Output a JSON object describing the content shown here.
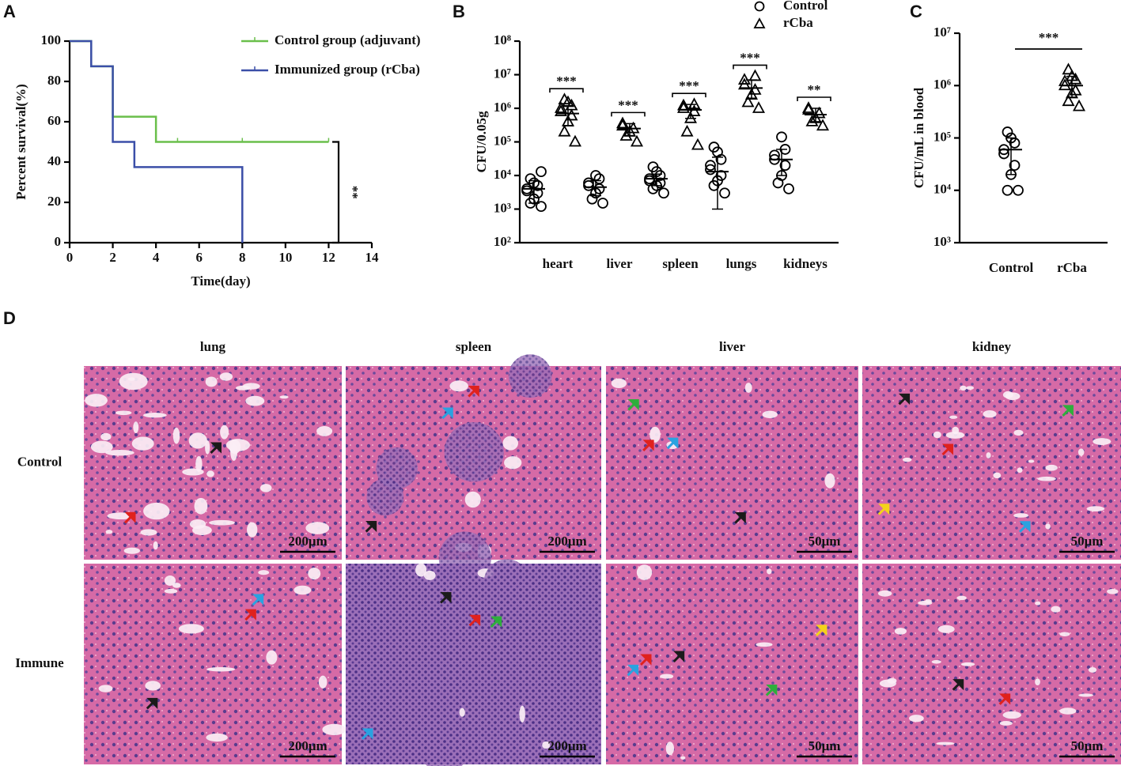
{
  "panel_labels": [
    "A",
    "B",
    "C",
    "D"
  ],
  "chart_data": [
    {
      "type": "survival",
      "xlabel": "Time(day)",
      "ylabel": "Percent survival(%)",
      "xlim": [
        0,
        14
      ],
      "xticks": [
        0,
        2,
        4,
        6,
        8,
        10,
        12,
        14
      ],
      "ylim": [
        0,
        100
      ],
      "yticks": [
        0,
        20,
        40,
        60,
        80,
        100
      ],
      "legend": "upper right",
      "annotation": "**",
      "series": [
        {
          "name": "Control group (adjuvant)",
          "color": "#6abf4b",
          "x": [
            0,
            1,
            2,
            4,
            12
          ],
          "values": [
            100,
            87.5,
            62.5,
            50,
            50
          ],
          "censored": [
            5,
            8,
            12
          ]
        },
        {
          "name": "Immunized group (rCba)",
          "color": "#3b4fa8",
          "x": [
            0,
            1,
            2,
            3,
            8
          ],
          "values": [
            100,
            87.5,
            50,
            37.5,
            0
          ],
          "censored": []
        }
      ]
    },
    {
      "type": "scatter",
      "ylabel": "CFU/0.05g",
      "log": true,
      "ylim": [
        100,
        100000000
      ],
      "yticks": [
        {
          "value": 100,
          "label": "10²"
        },
        {
          "value": 1000,
          "label": "10³"
        },
        {
          "value": 10000,
          "label": "10⁴"
        },
        {
          "value": 100000,
          "label": "10⁵"
        },
        {
          "value": 1000000,
          "label": "10⁶"
        },
        {
          "value": 10000000,
          "label": "10⁷"
        },
        {
          "value": 100000000,
          "label": "10⁸"
        }
      ],
      "categories": [
        "heart",
        "liver",
        "spleen",
        "lungs",
        "kidneys"
      ],
      "annotations": [
        "***",
        "***",
        "***",
        "***",
        "**"
      ],
      "legend": "upper right",
      "series": [
        {
          "name": "Control",
          "marker": "circle",
          "color": "#000000",
          "values": [
            [
              1200,
              1500,
              2000,
              3000,
              3500,
              4000,
              5000,
              6000,
              8000,
              13000
            ],
            [
              1500,
              2000,
              3000,
              4000,
              5000,
              6000,
              8000,
              10000
            ],
            [
              3000,
              4000,
              5000,
              6000,
              7000,
              8000,
              10000,
              13000,
              18000
            ],
            [
              3000,
              5000,
              7000,
              10000,
              15000,
              20000,
              30000,
              50000,
              70000
            ],
            [
              4000,
              6000,
              10000,
              20000,
              30000,
              40000,
              60000,
              140000
            ]
          ],
          "means": [
            4000,
            4500,
            8000,
            13000,
            30000
          ],
          "ranges": [
            [
              1500,
              7000
            ],
            [
              2500,
              7000
            ],
            [
              5000,
              11000
            ],
            [
              1000,
              35000
            ],
            [
              10000,
              60000
            ]
          ]
        },
        {
          "name": "rCba",
          "marker": "triangle",
          "color": "#000000",
          "values": [
            [
              100000,
              200000,
              400000,
              600000,
              800000,
              1000000,
              1200000,
              1500000,
              1800000
            ],
            [
              100000,
              150000,
              200000,
              250000,
              300000,
              350000
            ],
            [
              80000,
              200000,
              500000,
              800000,
              1000000,
              1200000,
              1300000
            ],
            [
              1000000,
              1500000,
              2500000,
              3500000,
              5000000,
              7000000,
              9000000
            ],
            [
              300000,
              400000,
              500000,
              700000,
              900000,
              1000000
            ]
          ],
          "means": [
            700000,
            250000,
            900000,
            4000000,
            650000
          ],
          "ranges": [
            [
              300000,
              1200000
            ],
            [
              150000,
              350000
            ],
            [
              500000,
              1300000
            ],
            [
              2000000,
              7000000
            ],
            [
              400000,
              1000000
            ]
          ]
        }
      ]
    },
    {
      "type": "scatter",
      "ylabel": "CFU/mL in blood",
      "log": true,
      "ylim": [
        1000,
        10000000
      ],
      "yticks": [
        {
          "value": 1000,
          "label": "10³"
        },
        {
          "value": 10000,
          "label": "10⁴"
        },
        {
          "value": 100000,
          "label": "10⁵"
        },
        {
          "value": 1000000,
          "label": "10⁶"
        },
        {
          "value": 10000000,
          "label": "10⁷"
        }
      ],
      "categories": [
        "Control",
        "rCba"
      ],
      "annotation": "***",
      "series": [
        {
          "marker": "circle",
          "color": "#000000",
          "values": [
            [
              10000,
              10000,
              20000,
              30000,
              50000,
              60000,
              80000,
              100000,
              130000
            ],
            []
          ],
          "means": [
            60000,
            null
          ],
          "ranges": [
            [
              20000,
              100000
            ],
            null
          ]
        },
        {
          "marker": "triangle",
          "color": "#000000",
          "values": [
            [],
            [
              400000,
              500000,
              700000,
              800000,
              1000000,
              1200000,
              1300000,
              1500000,
              2000000
            ]
          ],
          "means": [
            null,
            1000000
          ],
          "ranges": [
            null,
            [
              600000,
              1500000
            ]
          ]
        }
      ]
    }
  ],
  "histology": {
    "columns": [
      "lung",
      "spleen",
      "liver",
      "kidney"
    ],
    "rows": [
      "Control",
      "Immune"
    ],
    "scale_bars": [
      [
        "200μm",
        "200μm",
        "50μm",
        "50μm"
      ],
      [
        "200μm",
        "200μm",
        "50μm",
        "50μm"
      ]
    ]
  }
}
